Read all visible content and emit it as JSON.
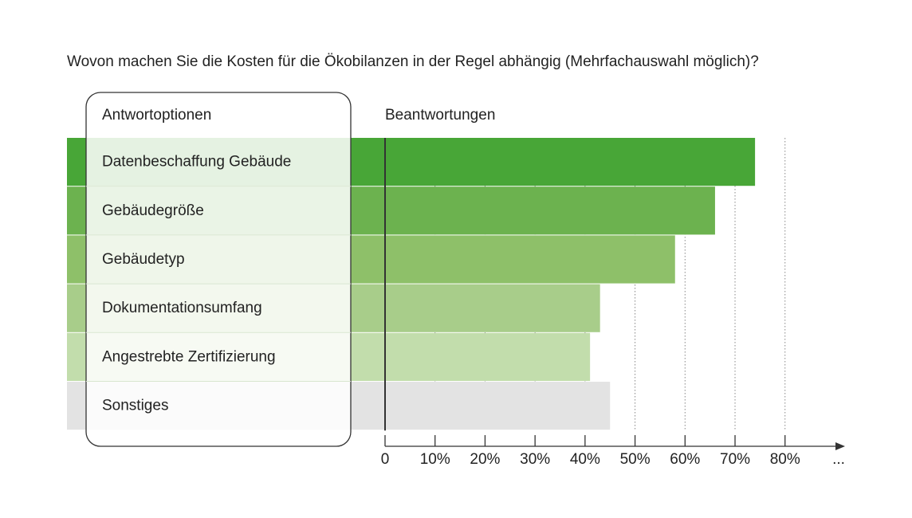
{
  "chart_data": {
    "type": "bar",
    "orientation": "horizontal",
    "title": "Wovon machen Sie die Kosten für die Ökobilanzen in der Regel abhängig (Mehrfachauswahl möglich)?",
    "category_header": "Antwortoptionen",
    "value_header": "Beantwortungen",
    "categories": [
      "Datenbeschaffung Gebäude",
      "Gebäudegröße",
      "Gebäudetyp",
      "Dokumentationsumfang",
      "Angestrebte Zertifizierung",
      "Sonstiges"
    ],
    "values": [
      74,
      66,
      58,
      43,
      41,
      45
    ],
    "colors": [
      "#48a637",
      "#6cb24f",
      "#8ec069",
      "#a8cd8a",
      "#c2ddac",
      "#e3e3e3"
    ],
    "xlim": [
      0,
      92
    ],
    "xticks": [
      0,
      {
        "value": 10,
        "label": "10%"
      },
      {
        "value": 20,
        "label": "20%"
      },
      {
        "value": 30,
        "label": "30%"
      },
      {
        "value": 40,
        "label": "40%"
      },
      {
        "value": 50,
        "label": "50%"
      },
      {
        "value": 60,
        "label": "60%"
      },
      {
        "value": 70,
        "label": "70%"
      },
      {
        "value": 80,
        "label": "80%"
      }
    ],
    "axis_end_label": "...",
    "grid": true
  }
}
